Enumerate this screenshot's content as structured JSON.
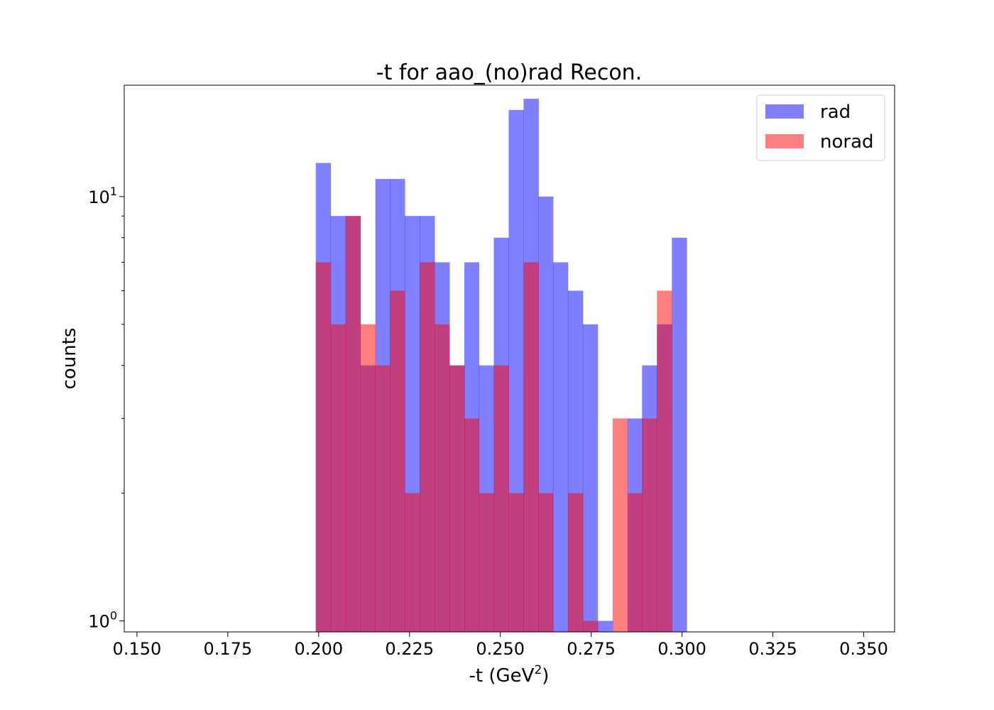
{
  "chart_data": {
    "type": "bar",
    "title": "-t for aao_(no)rad Recon.",
    "xlabel": "-t (GeV",
    "xlabel_sup": "2",
    "xlabel_close": ")",
    "ylabel": "counts",
    "xlim": [
      0.1465,
      0.3585
    ],
    "ylim": [
      0.942,
      18.3
    ],
    "yscale": "log",
    "grid": false,
    "legend_position": "top-right",
    "x_ticks": [
      "0.150",
      "0.175",
      "0.200",
      "0.225",
      "0.250",
      "0.275",
      "0.300",
      "0.325",
      "0.350"
    ],
    "y_ticks": [
      {
        "base": "10",
        "exp": "0",
        "value": 1
      },
      {
        "base": "10",
        "exp": "1",
        "value": 10
      }
    ],
    "bin_edges": [
      0.1992,
      0.2033,
      0.2074,
      0.2115,
      0.2156,
      0.2196,
      0.2237,
      0.2278,
      0.2319,
      0.236,
      0.2401,
      0.2441,
      0.2482,
      0.2523,
      0.2564,
      0.2605,
      0.2645,
      0.2686,
      0.2727,
      0.2768,
      0.2809,
      0.285,
      0.289,
      0.2931,
      0.2972,
      0.3013
    ],
    "series": [
      {
        "name": "rad",
        "color": "#0000ff",
        "opacity": 0.5,
        "values": [
          12,
          9,
          9,
          4,
          11,
          11,
          9,
          9,
          7,
          4,
          7,
          4,
          8,
          16,
          17,
          10,
          7,
          6,
          5,
          1,
          0,
          3,
          4,
          5,
          8
        ]
      },
      {
        "name": "norad",
        "color": "#ff0000",
        "opacity": 0.5,
        "values": [
          7,
          5,
          9,
          5,
          4,
          6,
          2,
          7,
          5,
          4,
          3,
          2,
          4,
          2,
          7,
          2,
          0,
          2,
          1,
          0,
          3,
          2,
          3,
          6,
          0
        ]
      }
    ]
  }
}
